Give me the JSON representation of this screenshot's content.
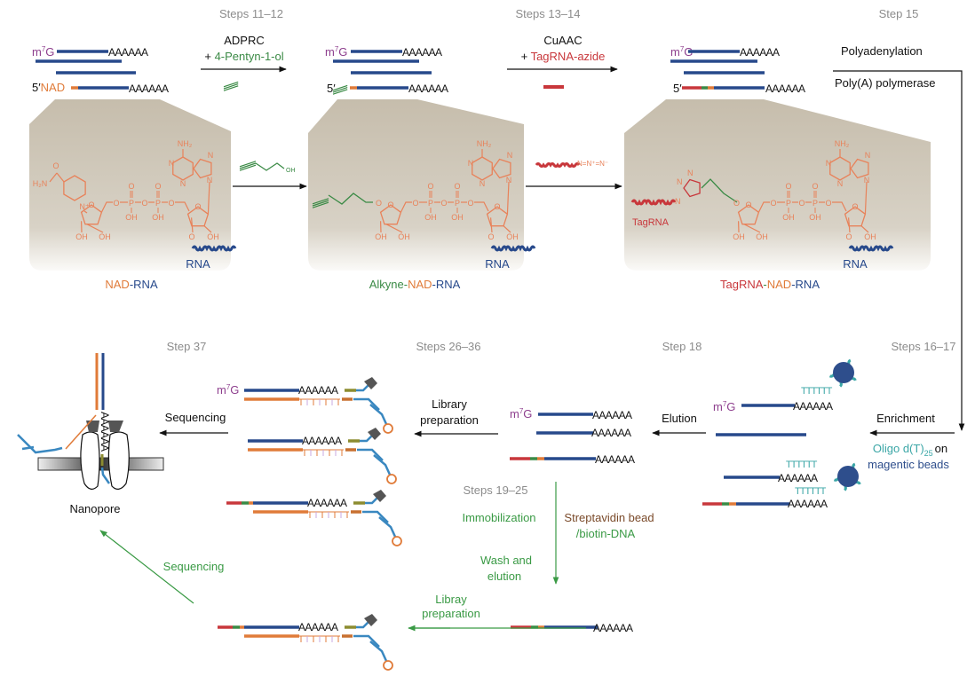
{
  "steps": {
    "s11_12": "Steps 11–12",
    "s13_14": "Steps 13–14",
    "s15": "Step 15",
    "s16_17": "Steps 16–17",
    "s18": "Step 18",
    "s19_25": "Steps 19–25",
    "s26_36": "Steps 26–36",
    "s37": "Step 37"
  },
  "reagents": {
    "plus": "+",
    "adprc": "ADPRC",
    "pentynol": "4-Pentyn-1-ol",
    "cuaac": "CuAAC",
    "tagrna_azide": "TagRNA-azide",
    "polyadenylation": "Polyadenylation",
    "polya_polymerase": "Poly(A) polymerase",
    "azide": "N=N⁺=N⁻",
    "oh": "OH"
  },
  "labels": {
    "polyA": "AAAAAA",
    "five_prime": "5′",
    "nad": "NAD",
    "m": "m",
    "sup7": "7",
    "g": "G",
    "rna": "RNA",
    "tagrna": "TagRNA",
    "oligo_t": "TTTTTT"
  },
  "captions": {
    "nad_rna": {
      "nad": "NAD",
      "dash": "-",
      "rna": "RNA"
    },
    "alkyne_nad_rna": {
      "alkyne": "Alkyne",
      "dash": "-",
      "nad": "NAD",
      "rna": "RNA"
    },
    "tagrna_nad_rna": {
      "tagrna": "TagRNA",
      "dash": "-",
      "nad": "NAD",
      "rna": "RNA"
    }
  },
  "chem": {
    "o": "O",
    "p": "P",
    "oh": "OH",
    "n": "N",
    "n_plus": "N⁺",
    "nh2": "NH₂",
    "h2n": "H₂N"
  },
  "workflow": {
    "enrichment": "Enrichment",
    "oligo": "Oligo d(T)",
    "oligo_sub": "25",
    "on": "on",
    "beads": "magentic beads",
    "elution": "Elution",
    "library": "Library",
    "preparation": "preparation",
    "sequencing": "Sequencing",
    "nanopore": "Nanopore",
    "immobilization": "Immobilization",
    "streptavidin": "Streptavidin bead",
    "biotin": "/biotin-DNA",
    "wash": "Wash and",
    "elution_lower": "elution",
    "libray": "Libray",
    "sequencing_green": "Sequencing"
  },
  "colors": {
    "rna_blue": "#27498b",
    "nad_orange": "#e07b39",
    "tag_red": "#c8373b",
    "alkyne_green": "#3a8a45",
    "cap_purple": "#8e3f8e",
    "oligo_teal": "#3aa6a6",
    "step_gray": "#8c8c8c",
    "adapter_olive": "#8c8c30",
    "adapter_blue": "#3a88c0",
    "streptavidin_brown": "#7a4a2a"
  }
}
